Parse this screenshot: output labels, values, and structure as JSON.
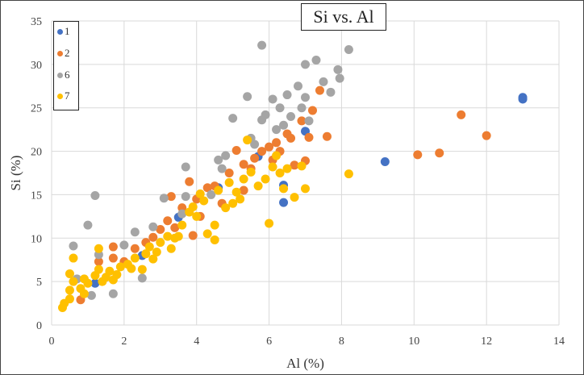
{
  "chart_data": {
    "type": "scatter",
    "title": "Si vs. Al",
    "xlabel": "Al (%)",
    "ylabel": "Si (%)",
    "xlim": [
      0,
      14
    ],
    "ylim": [
      0,
      35
    ],
    "xticks": [
      "0",
      "2",
      "4",
      "6",
      "8",
      "10",
      "12",
      "14"
    ],
    "yticks": [
      "0",
      "5",
      "10",
      "15",
      "20",
      "25",
      "30",
      "35"
    ],
    "grid": true,
    "legend_position": "top-left",
    "series": [
      {
        "name": "1",
        "color": "#4472C4",
        "points": [
          [
            13,
            26.2
          ],
          [
            13,
            26
          ],
          [
            9.2,
            18.8
          ],
          [
            6.4,
            16.1
          ],
          [
            6.4,
            14.1
          ],
          [
            7,
            22.3
          ],
          [
            4.6,
            15.8
          ],
          [
            5.7,
            19.4
          ],
          [
            3.5,
            12.4
          ],
          [
            2.5,
            8
          ],
          [
            1.2,
            4.8
          ]
        ]
      },
      {
        "name": "2",
        "color": "#ED7D31",
        "points": [
          [
            11.3,
            24.2
          ],
          [
            12,
            21.8
          ],
          [
            10.7,
            19.8
          ],
          [
            10.1,
            19.6
          ],
          [
            7.6,
            21.7
          ],
          [
            7.1,
            21.6
          ],
          [
            7.2,
            24.7
          ],
          [
            7.4,
            27
          ],
          [
            6.9,
            23.5
          ],
          [
            6.5,
            22
          ],
          [
            6.2,
            21
          ],
          [
            6,
            20.5
          ],
          [
            5.8,
            20
          ],
          [
            5.6,
            19.2
          ],
          [
            5.3,
            18.5
          ],
          [
            5.1,
            20.1
          ],
          [
            4.9,
            17.5
          ],
          [
            4.5,
            16
          ],
          [
            4.3,
            15.8
          ],
          [
            4,
            14.5
          ],
          [
            3.8,
            16.5
          ],
          [
            3.6,
            13.5
          ],
          [
            3.3,
            14.8
          ],
          [
            3.2,
            12
          ],
          [
            3,
            11
          ],
          [
            2.6,
            9.5
          ],
          [
            2.3,
            8.8
          ],
          [
            1.7,
            9
          ],
          [
            1.7,
            7.7
          ],
          [
            1.3,
            7.3
          ],
          [
            0.8,
            2.9
          ],
          [
            3.9,
            10.3
          ],
          [
            5.3,
            15.5
          ],
          [
            6.7,
            18.4
          ],
          [
            7,
            18.9
          ],
          [
            6.6,
            21.5
          ],
          [
            6.3,
            20
          ],
          [
            4.7,
            14
          ],
          [
            4.1,
            12.5
          ],
          [
            3.4,
            11.2
          ],
          [
            2.8,
            10.1
          ],
          [
            2,
            7.3
          ],
          [
            5.5,
            18
          ],
          [
            6.1,
            19
          ]
        ]
      },
      {
        "name": "6",
        "color": "#A5A5A5",
        "points": [
          [
            5.8,
            32.2
          ],
          [
            8.2,
            31.7
          ],
          [
            7.3,
            30.5
          ],
          [
            7,
            30
          ],
          [
            7.9,
            29.4
          ],
          [
            7.95,
            28.4
          ],
          [
            7.5,
            28
          ],
          [
            6.8,
            27.5
          ],
          [
            6.5,
            26.5
          ],
          [
            6.1,
            26
          ],
          [
            6.3,
            25
          ],
          [
            5.4,
            26.3
          ],
          [
            5.9,
            24.2
          ],
          [
            6.2,
            22.5
          ],
          [
            5.8,
            23.6
          ],
          [
            5,
            23.8
          ],
          [
            5.5,
            21.5
          ],
          [
            4.8,
            19.5
          ],
          [
            4.7,
            18
          ],
          [
            3.7,
            18.2
          ],
          [
            3.7,
            14.8
          ],
          [
            3.1,
            14.6
          ],
          [
            2.8,
            11.3
          ],
          [
            2.3,
            10.7
          ],
          [
            2,
            9.2
          ],
          [
            1.3,
            8.1
          ],
          [
            1,
            11.5
          ],
          [
            1.2,
            14.9
          ],
          [
            0.6,
            9.1
          ],
          [
            0.7,
            5.3
          ],
          [
            1.1,
            3.4
          ],
          [
            1.7,
            3.6
          ],
          [
            2.5,
            5.4
          ],
          [
            7.7,
            26.8
          ],
          [
            7,
            26.2
          ],
          [
            6.9,
            25
          ],
          [
            6.6,
            24
          ],
          [
            4.4,
            15
          ],
          [
            3.6,
            12.8
          ],
          [
            6.4,
            23
          ],
          [
            5.6,
            20.8
          ],
          [
            4.6,
            19
          ],
          [
            7.1,
            23.5
          ]
        ]
      },
      {
        "name": "7",
        "color": "#FFC000",
        "points": [
          [
            0.3,
            2
          ],
          [
            0.35,
            2.5
          ],
          [
            0.5,
            3
          ],
          [
            0.5,
            4
          ],
          [
            0.6,
            5
          ],
          [
            0.5,
            5.9
          ],
          [
            0.6,
            7.7
          ],
          [
            0.8,
            4.2
          ],
          [
            0.9,
            5.3
          ],
          [
            1,
            4.8
          ],
          [
            1.2,
            5.7
          ],
          [
            1.3,
            6.4
          ],
          [
            1.3,
            8.8
          ],
          [
            1.5,
            5.5
          ],
          [
            1.6,
            6.2
          ],
          [
            1.8,
            5.8
          ],
          [
            1.9,
            6.7
          ],
          [
            2.1,
            7
          ],
          [
            2.3,
            7.7
          ],
          [
            2.5,
            6.4
          ],
          [
            2.6,
            8.2
          ],
          [
            2.8,
            7.6
          ],
          [
            3,
            9.5
          ],
          [
            3.2,
            10.2
          ],
          [
            3.3,
            8.8
          ],
          [
            3.5,
            10.2
          ],
          [
            3.6,
            11.5
          ],
          [
            3.8,
            13
          ],
          [
            4,
            12.5
          ],
          [
            4.2,
            14.3
          ],
          [
            4.3,
            10.5
          ],
          [
            4.5,
            9.8
          ],
          [
            4.5,
            11.5
          ],
          [
            4.6,
            15.5
          ],
          [
            4.8,
            13.5
          ],
          [
            5,
            14
          ],
          [
            5.2,
            14.5
          ],
          [
            5.3,
            16.8
          ],
          [
            5.4,
            21.3
          ],
          [
            5.5,
            17.6
          ],
          [
            5.7,
            16
          ],
          [
            5.9,
            16.8
          ],
          [
            6,
            11.7
          ],
          [
            6.1,
            18.2
          ],
          [
            6.2,
            19.5
          ],
          [
            6.4,
            15.7
          ],
          [
            6.5,
            18
          ],
          [
            6.7,
            14.7
          ],
          [
            6.9,
            18.3
          ],
          [
            7,
            15.7
          ],
          [
            8.2,
            17.4
          ],
          [
            4.1,
            15.1
          ],
          [
            3.4,
            10
          ],
          [
            2.9,
            8.4
          ],
          [
            2.2,
            6.5
          ],
          [
            1.7,
            5.2
          ],
          [
            0.9,
            3.6
          ],
          [
            5.1,
            15.3
          ],
          [
            4.9,
            16.4
          ],
          [
            3.9,
            13.6
          ],
          [
            2.7,
            9
          ],
          [
            1.4,
            5
          ],
          [
            6.3,
            17.5
          ]
        ]
      }
    ]
  }
}
